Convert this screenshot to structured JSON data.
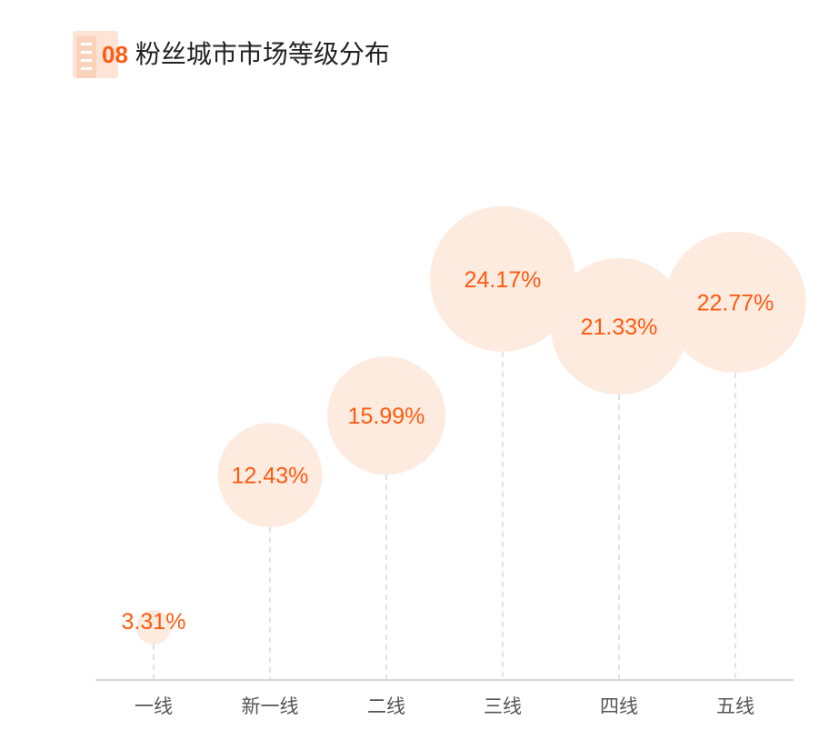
{
  "header": {
    "number": "08",
    "title": "粉丝城市市场等级分布"
  },
  "colors": {
    "accent": "#ff5a0f",
    "bubble_fill": "#fdebe0",
    "axis": "#c8c8c8",
    "guide": "#d9d9d9",
    "category_text": "#555555",
    "title_text": "#222222",
    "icon_bg": "#fde4d6"
  },
  "chart_data": {
    "type": "bubble",
    "title": "粉丝城市市场等级分布",
    "categories": [
      "一线",
      "新一线",
      "二线",
      "三线",
      "四线",
      "五线"
    ],
    "values": [
      3.31,
      12.43,
      15.99,
      24.17,
      21.33,
      22.77
    ],
    "value_labels": [
      "3.31%",
      "12.43%",
      "15.99%",
      "24.17%",
      "21.33%",
      "22.77%"
    ],
    "unit": "%",
    "xlabel": "",
    "ylabel": "",
    "ylim": [
      0,
      30
    ],
    "grid": false,
    "legend": "none"
  }
}
